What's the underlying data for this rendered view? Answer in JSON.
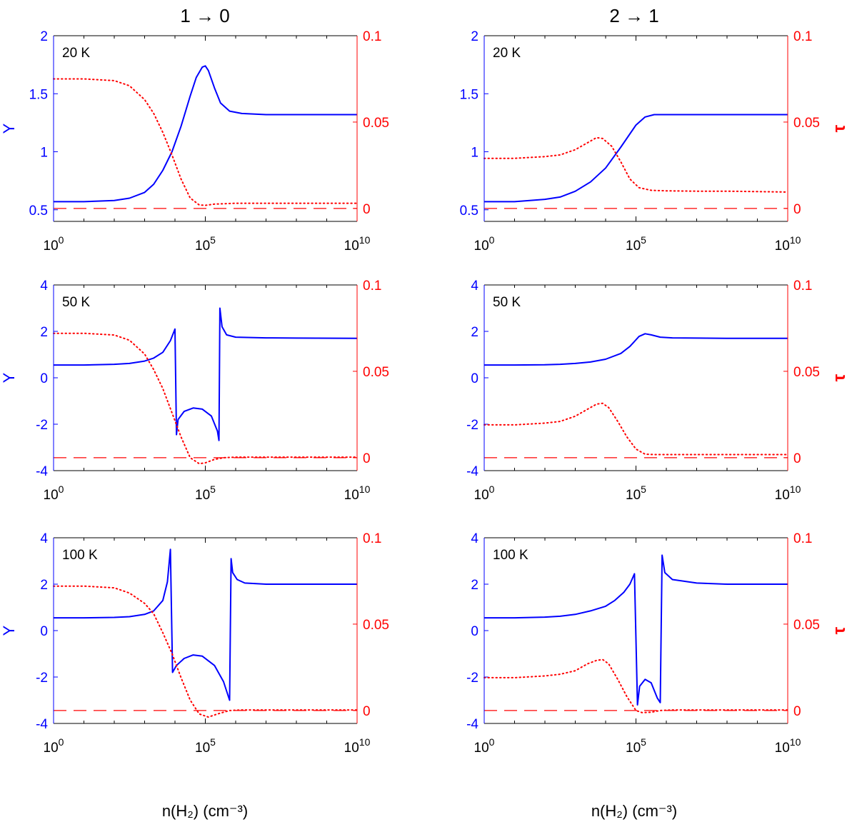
{
  "figure": {
    "column_titles": [
      "1 → 0",
      "2 → 1"
    ],
    "xlabel": "n(H₂) (cm⁻³)",
    "left_ylabel": "Y",
    "right_ylabel": "τ"
  },
  "colors": {
    "y_axis": "#0000ff",
    "tau_axis": "#ff0000",
    "frame": "#000000"
  },
  "chart_data": [
    {
      "type": "line",
      "title": "1 → 0",
      "label": "20 K",
      "row": 0,
      "col": 0,
      "xscale": "log10",
      "xlim": [
        0,
        10
      ],
      "xticks": [
        0,
        5,
        10
      ],
      "xtick_labels": [
        "10^0",
        "10^5",
        "10^10"
      ],
      "ylim": [
        0.4,
        2
      ],
      "yticks": [
        0.5,
        1,
        1.5,
        2
      ],
      "ytick_labels": [
        "0.5",
        "1",
        "1.5",
        "2"
      ],
      "tau_lim": [
        -0.0075,
        0.1
      ],
      "tau_ticks": [
        0,
        0.05,
        0.1
      ],
      "tau_tick_labels": [
        "0",
        "0.05",
        "0.1"
      ],
      "ylabel": "Y",
      "tau_label": "",
      "series": [
        {
          "name": "Y",
          "axis": "left",
          "style": "solid",
          "color": "#0000ff",
          "x": [
            0,
            1,
            2,
            2.5,
            3,
            3.3,
            3.6,
            3.9,
            4.2,
            4.5,
            4.7,
            4.9,
            5.0,
            5.1,
            5.3,
            5.5,
            5.8,
            6.2,
            7,
            8,
            10
          ],
          "y": [
            0.57,
            0.57,
            0.58,
            0.6,
            0.65,
            0.72,
            0.84,
            1.0,
            1.22,
            1.48,
            1.64,
            1.73,
            1.74,
            1.7,
            1.55,
            1.42,
            1.35,
            1.33,
            1.32,
            1.32,
            1.32
          ]
        },
        {
          "name": "tau",
          "axis": "right",
          "style": "dotted",
          "color": "#ff0000",
          "x": [
            0,
            1,
            2,
            2.5,
            3,
            3.3,
            3.6,
            3.9,
            4.2,
            4.5,
            4.8,
            5.0,
            5.3,
            6,
            7,
            8,
            10
          ],
          "y": [
            0.075,
            0.075,
            0.074,
            0.071,
            0.063,
            0.055,
            0.044,
            0.031,
            0.017,
            0.006,
            0.002,
            0.0018,
            0.0025,
            0.003,
            0.003,
            0.003,
            0.003
          ]
        },
        {
          "name": "zero",
          "axis": "right",
          "style": "dashed",
          "color": "#ff0000",
          "x": [
            0,
            10
          ],
          "y": [
            0,
            0
          ]
        }
      ]
    },
    {
      "type": "line",
      "title": "2 → 1",
      "label": "20 K",
      "row": 0,
      "col": 1,
      "xscale": "log10",
      "xlim": [
        0,
        10
      ],
      "xticks": [
        0,
        5,
        10
      ],
      "xtick_labels": [
        "10^0",
        "10^5",
        "10^10"
      ],
      "ylim": [
        0.4,
        2
      ],
      "yticks": [
        0.5,
        1,
        1.5,
        2
      ],
      "ytick_labels": [
        "0.5",
        "1",
        "1.5",
        "2"
      ],
      "tau_lim": [
        -0.0075,
        0.1
      ],
      "tau_ticks": [
        0,
        0.05,
        0.1
      ],
      "tau_tick_labels": [
        "0",
        "0.05",
        "0.1"
      ],
      "ylabel": "",
      "tau_label": "τ",
      "series": [
        {
          "name": "Y",
          "axis": "left",
          "style": "solid",
          "color": "#0000ff",
          "x": [
            0,
            1,
            2,
            2.5,
            3,
            3.5,
            4,
            4.5,
            5,
            5.3,
            5.6,
            6,
            7,
            8,
            10
          ],
          "y": [
            0.57,
            0.57,
            0.59,
            0.61,
            0.66,
            0.74,
            0.86,
            1.04,
            1.23,
            1.3,
            1.32,
            1.32,
            1.32,
            1.32,
            1.32
          ]
        },
        {
          "name": "tau",
          "axis": "right",
          "style": "dotted",
          "color": "#ff0000",
          "x": [
            0,
            1,
            2,
            2.5,
            3,
            3.4,
            3.7,
            3.9,
            4.2,
            4.5,
            4.8,
            5.1,
            5.5,
            6,
            7,
            8,
            10
          ],
          "y": [
            0.029,
            0.029,
            0.03,
            0.031,
            0.034,
            0.038,
            0.041,
            0.0405,
            0.036,
            0.027,
            0.017,
            0.012,
            0.0105,
            0.0102,
            0.01,
            0.01,
            0.0095
          ]
        },
        {
          "name": "zero",
          "axis": "right",
          "style": "dashed",
          "color": "#ff0000",
          "x": [
            0,
            10
          ],
          "y": [
            0,
            0
          ]
        }
      ]
    },
    {
      "type": "line",
      "title": "",
      "label": "50 K",
      "row": 1,
      "col": 0,
      "xscale": "log10",
      "xlim": [
        0,
        10
      ],
      "xticks": [
        0,
        5,
        10
      ],
      "xtick_labels": [
        "10^0",
        "10^5",
        "10^10"
      ],
      "ylim": [
        -4,
        4
      ],
      "yticks": [
        -4,
        -2,
        0,
        2,
        4
      ],
      "ytick_labels": [
        "-4",
        "-2",
        "0",
        "2",
        "4"
      ],
      "tau_lim": [
        -0.0075,
        0.1
      ],
      "tau_ticks": [
        0,
        0.05,
        0.1
      ],
      "tau_tick_labels": [
        "0",
        "0.05",
        "0.1"
      ],
      "ylabel": "Y",
      "tau_label": "",
      "series": [
        {
          "name": "Y",
          "axis": "left",
          "style": "solid",
          "color": "#0000ff",
          "x": [
            0,
            1,
            2,
            2.5,
            3,
            3.3,
            3.6,
            3.85,
            4.0,
            4.05,
            4.1,
            4.3,
            4.6,
            4.9,
            5.2,
            5.4,
            5.45,
            5.48,
            5.55,
            5.7,
            6,
            7,
            8,
            10
          ],
          "y": [
            0.55,
            0.55,
            0.58,
            0.62,
            0.72,
            0.85,
            1.1,
            1.6,
            2.1,
            -2.45,
            -1.8,
            -1.45,
            -1.3,
            -1.35,
            -1.65,
            -2.3,
            -2.7,
            3.0,
            2.2,
            1.85,
            1.75,
            1.72,
            1.71,
            1.7
          ]
        },
        {
          "name": "tau",
          "axis": "right",
          "style": "dotted",
          "color": "#ff0000",
          "x": [
            0,
            1,
            2,
            2.5,
            3,
            3.3,
            3.6,
            3.9,
            4.2,
            4.5,
            4.8,
            5.0,
            5.3,
            5.6,
            6,
            7,
            8,
            10
          ],
          "y": [
            0.072,
            0.072,
            0.071,
            0.068,
            0.06,
            0.051,
            0.04,
            0.026,
            0.012,
            0.0,
            -0.0035,
            -0.003,
            -0.001,
            0.0,
            0.0003,
            0.0003,
            0.0003,
            0.0003
          ]
        },
        {
          "name": "zero",
          "axis": "right",
          "style": "dashed",
          "color": "#ff0000",
          "x": [
            0,
            10
          ],
          "y": [
            0,
            0
          ]
        }
      ]
    },
    {
      "type": "line",
      "title": "",
      "label": "50 K",
      "row": 1,
      "col": 1,
      "xscale": "log10",
      "xlim": [
        0,
        10
      ],
      "xticks": [
        0,
        5,
        10
      ],
      "xtick_labels": [
        "10^0",
        "10^5",
        "10^10"
      ],
      "ylim": [
        -4,
        4
      ],
      "yticks": [
        -4,
        -2,
        0,
        2,
        4
      ],
      "ytick_labels": [
        "-4",
        "-2",
        "0",
        "2",
        "4"
      ],
      "tau_lim": [
        -0.0075,
        0.1
      ],
      "tau_ticks": [
        0,
        0.05,
        0.1
      ],
      "tau_tick_labels": [
        "0",
        "0.05",
        "0.1"
      ],
      "ylabel": "",
      "tau_label": "τ",
      "series": [
        {
          "name": "Y",
          "axis": "left",
          "style": "solid",
          "color": "#0000ff",
          "x": [
            0,
            1,
            2,
            2.5,
            3,
            3.5,
            4,
            4.5,
            4.8,
            5.1,
            5.3,
            5.5,
            5.8,
            6.2,
            7,
            8,
            10
          ],
          "y": [
            0.55,
            0.55,
            0.56,
            0.58,
            0.62,
            0.68,
            0.8,
            1.05,
            1.35,
            1.78,
            1.9,
            1.85,
            1.75,
            1.72,
            1.71,
            1.7,
            1.7
          ]
        },
        {
          "name": "tau",
          "axis": "right",
          "style": "dotted",
          "color": "#ff0000",
          "x": [
            0,
            1,
            2,
            2.5,
            3,
            3.4,
            3.7,
            3.9,
            4.1,
            4.4,
            4.7,
            5.0,
            5.3,
            5.6,
            6,
            7,
            8,
            10
          ],
          "y": [
            0.019,
            0.019,
            0.02,
            0.021,
            0.024,
            0.028,
            0.031,
            0.0315,
            0.029,
            0.021,
            0.012,
            0.005,
            0.002,
            0.0018,
            0.0018,
            0.0018,
            0.0018,
            0.0018
          ]
        },
        {
          "name": "zero",
          "axis": "right",
          "style": "dashed",
          "color": "#ff0000",
          "x": [
            0,
            10
          ],
          "y": [
            0,
            0
          ]
        }
      ]
    },
    {
      "type": "line",
      "title": "",
      "label": "100 K",
      "row": 2,
      "col": 0,
      "xscale": "log10",
      "xlim": [
        0,
        10
      ],
      "xticks": [
        0,
        5,
        10
      ],
      "xtick_labels": [
        "10^0",
        "10^5",
        "10^10"
      ],
      "ylim": [
        -4,
        4
      ],
      "yticks": [
        -4,
        -2,
        0,
        2,
        4
      ],
      "ytick_labels": [
        "-4",
        "-2",
        "0",
        "2",
        "4"
      ],
      "tau_lim": [
        -0.0075,
        0.1
      ],
      "tau_ticks": [
        0,
        0.05,
        0.1
      ],
      "tau_tick_labels": [
        "0",
        "0.05",
        "0.1"
      ],
      "ylabel": "Y",
      "tau_label": "",
      "series": [
        {
          "name": "Y",
          "axis": "left",
          "style": "solid",
          "color": "#0000ff",
          "x": [
            0,
            1,
            2,
            2.5,
            3,
            3.3,
            3.6,
            3.75,
            3.85,
            3.92,
            4.05,
            4.3,
            4.6,
            4.9,
            5.3,
            5.6,
            5.8,
            5.85,
            5.9,
            6.05,
            6.3,
            7,
            8,
            10
          ],
          "y": [
            0.55,
            0.55,
            0.57,
            0.6,
            0.7,
            0.85,
            1.3,
            2.1,
            3.5,
            -1.8,
            -1.5,
            -1.2,
            -1.05,
            -1.1,
            -1.5,
            -2.2,
            -3.0,
            3.1,
            2.5,
            2.2,
            2.05,
            2.0,
            2.0,
            2.0
          ]
        },
        {
          "name": "tau",
          "axis": "right",
          "style": "dotted",
          "color": "#ff0000",
          "x": [
            0,
            1,
            2,
            2.5,
            3,
            3.3,
            3.6,
            3.9,
            4.2,
            4.5,
            4.8,
            5.1,
            5.4,
            5.8,
            6.2,
            7,
            8,
            10
          ],
          "y": [
            0.072,
            0.072,
            0.071,
            0.068,
            0.062,
            0.056,
            0.045,
            0.033,
            0.019,
            0.006,
            -0.002,
            -0.0038,
            -0.002,
            0.0,
            0.0003,
            0.0003,
            0.0003,
            0.0003
          ]
        },
        {
          "name": "zero",
          "axis": "right",
          "style": "dashed",
          "color": "#ff0000",
          "x": [
            0,
            10
          ],
          "y": [
            0,
            0
          ]
        }
      ]
    },
    {
      "type": "line",
      "title": "",
      "label": "100 K",
      "row": 2,
      "col": 1,
      "xscale": "log10",
      "xlim": [
        0,
        10
      ],
      "xticks": [
        0,
        5,
        10
      ],
      "xtick_labels": [
        "10^0",
        "10^5",
        "10^10"
      ],
      "ylim": [
        -4,
        4
      ],
      "yticks": [
        -4,
        -2,
        0,
        2,
        4
      ],
      "ytick_labels": [
        "-4",
        "-2",
        "0",
        "2",
        "4"
      ],
      "tau_lim": [
        -0.0075,
        0.1
      ],
      "tau_ticks": [
        0,
        0.05,
        0.1
      ],
      "tau_tick_labels": [
        "0",
        "0.05",
        "0.1"
      ],
      "ylabel": "",
      "tau_label": "τ",
      "series": [
        {
          "name": "Y",
          "axis": "left",
          "style": "solid",
          "color": "#0000ff",
          "x": [
            0,
            1,
            2,
            2.5,
            3,
            3.5,
            4,
            4.3,
            4.6,
            4.8,
            4.95,
            5.05,
            5.12,
            5.3,
            5.5,
            5.7,
            5.8,
            5.86,
            5.95,
            6.2,
            7,
            8,
            10
          ],
          "y": [
            0.55,
            0.55,
            0.58,
            0.62,
            0.7,
            0.85,
            1.05,
            1.3,
            1.65,
            2.0,
            2.45,
            -3.2,
            -2.4,
            -2.1,
            -2.25,
            -2.9,
            -3.1,
            3.25,
            2.5,
            2.2,
            2.05,
            2.0,
            2.0
          ]
        },
        {
          "name": "tau",
          "axis": "right",
          "style": "dotted",
          "color": "#ff0000",
          "x": [
            0,
            1,
            2,
            2.5,
            3,
            3.4,
            3.7,
            3.9,
            4.1,
            4.4,
            4.7,
            5.0,
            5.2,
            5.5,
            5.8,
            6.2,
            7,
            8,
            10
          ],
          "y": [
            0.019,
            0.019,
            0.02,
            0.021,
            0.023,
            0.027,
            0.029,
            0.0295,
            0.027,
            0.018,
            0.008,
            0.0,
            -0.0012,
            -0.001,
            0.0,
            0.0003,
            0.0003,
            0.0003,
            0.0003
          ]
        },
        {
          "name": "zero",
          "axis": "right",
          "style": "dashed",
          "color": "#ff0000",
          "x": [
            0,
            10
          ],
          "y": [
            0,
            0
          ]
        }
      ]
    }
  ]
}
